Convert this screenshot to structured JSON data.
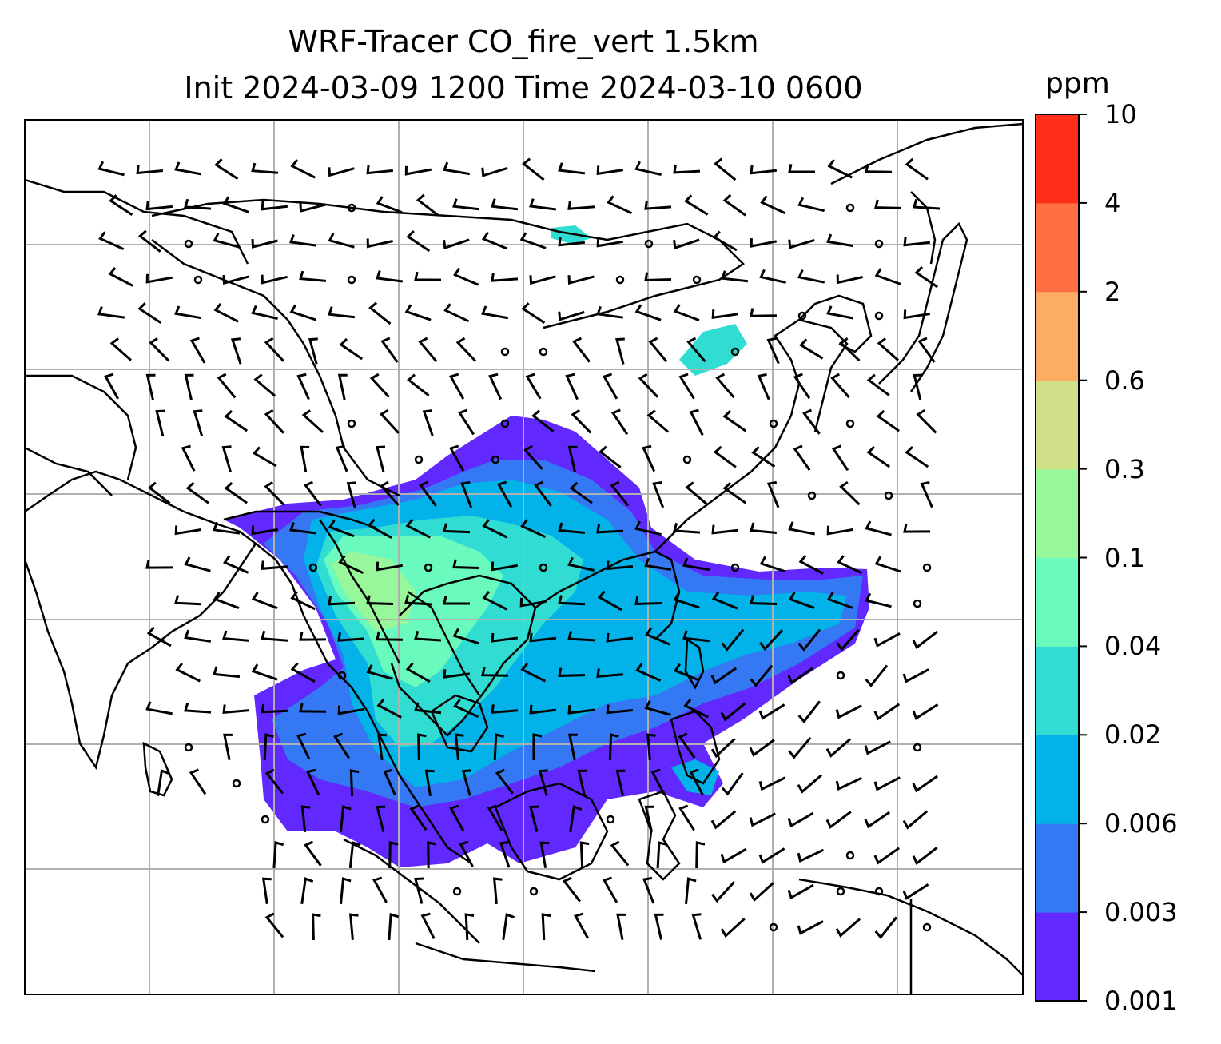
{
  "title": {
    "line1": "WRF-Tracer CO_fire_vert 1.5km",
    "line2": "Init 2024-03-09 1200 Time 2024-03-10 0600"
  },
  "colorbar": {
    "unit": "ppm",
    "levels": [
      "0.001",
      "0.003",
      "0.006",
      "0.02",
      "0.04",
      "0.1",
      "0.3",
      "0.6",
      "2",
      "4",
      "10"
    ],
    "colors": [
      "#6129fd",
      "#3478f3",
      "#03b2e8",
      "#31dcd2",
      "#6afabd",
      "#98f79b",
      "#d0e088",
      "#fdad63",
      "#fe7041",
      "#fe2e18"
    ]
  },
  "map": {
    "grid": "on",
    "field_colors": {
      "level1": "#6129fd",
      "level2": "#3478f3",
      "level3": "#03b2e8",
      "level4": "#31dcd2",
      "level5": "#6afabd",
      "level6": "#98f79b",
      "level7": "#d0e088"
    },
    "coastline_color": "#000000",
    "gridline_color": "#b0b0b0",
    "wind_barb_color": "#000000"
  }
}
